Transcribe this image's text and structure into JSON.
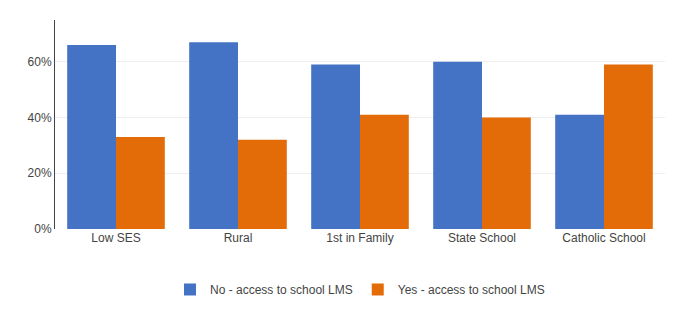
{
  "chart_data": {
    "type": "bar",
    "categories": [
      "Low SES",
      "Rural",
      "1st in Family",
      "State School",
      "Catholic School"
    ],
    "series": [
      {
        "name": "No - access to school LMS",
        "color": "#4472C4",
        "values": [
          0.66,
          0.67,
          0.59,
          0.6,
          0.41
        ]
      },
      {
        "name": "Yes - access to school LMS",
        "color": "#E36C09",
        "values": [
          0.33,
          0.32,
          0.41,
          0.4,
          0.59
        ]
      }
    ],
    "ylim": [
      0,
      0.75
    ],
    "yticks": [
      {
        "value": 0.0,
        "label": "0%"
      },
      {
        "value": 0.2,
        "label": "20%"
      },
      {
        "value": 0.4,
        "label": "40%"
      },
      {
        "value": 0.6,
        "label": "60%"
      }
    ],
    "grid": true,
    "legend": "bottom"
  }
}
